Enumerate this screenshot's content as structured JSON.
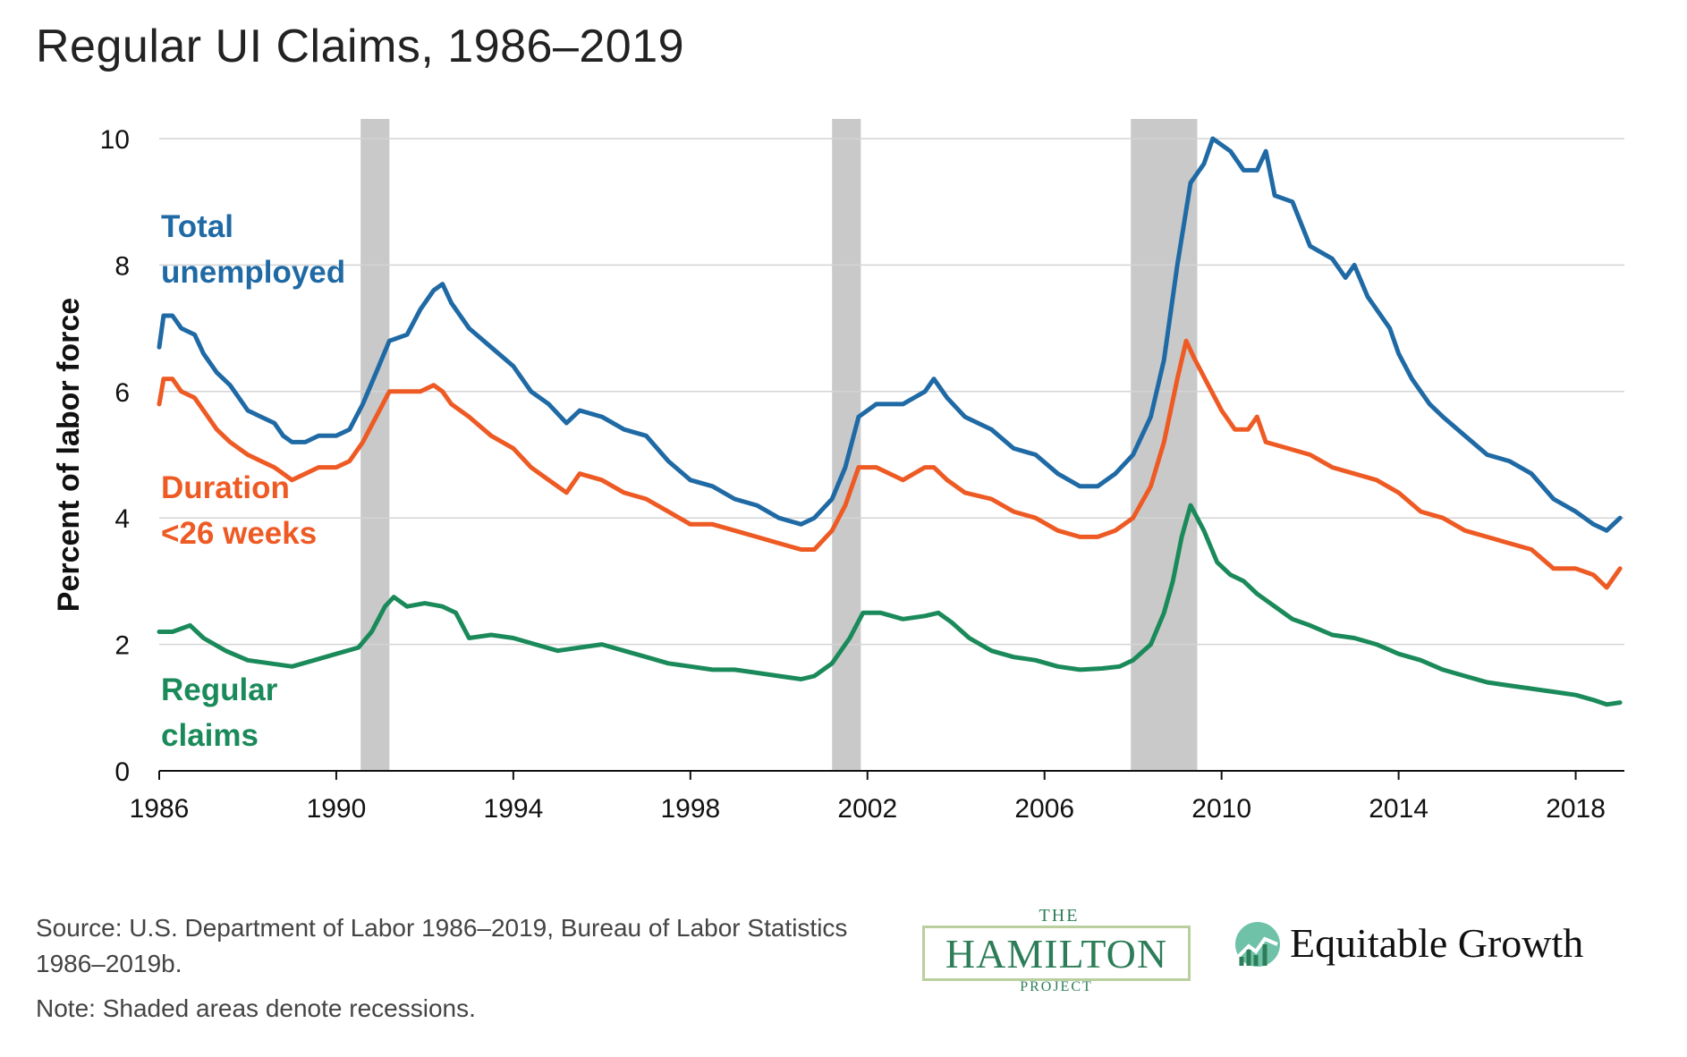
{
  "title": "Regular UI Claims, 1986–2019",
  "source_text": "Source: U.S. Department of Labor 1986–2019, Bureau of Labor Statistics 1986–2019b.",
  "note_text": "Note: Shaded areas denote recessions.",
  "logos": {
    "hamilton_the": "THE",
    "hamilton_name": "HAMILTON",
    "hamilton_project": "PROJECT",
    "equitable_growth": "Equitable Growth"
  },
  "chart_data": {
    "type": "line",
    "title": "Regular UI Claims, 1986–2019",
    "xlabel": "",
    "ylabel": "Percent of labor force",
    "xlim": [
      1986,
      2019.1
    ],
    "ylim": [
      0,
      10
    ],
    "x_ticks": [
      1986,
      1990,
      1994,
      1998,
      2002,
      2006,
      2010,
      2014,
      2018
    ],
    "y_ticks": [
      0,
      2,
      4,
      6,
      8,
      10
    ],
    "grid": "horizontal",
    "recessions": [
      [
        1990.55,
        1991.2
      ],
      [
        2001.2,
        2001.85
      ],
      [
        2007.95,
        2009.45
      ]
    ],
    "series": [
      {
        "name": "Total unemployed",
        "label_lines": [
          "Total",
          "unemployed"
        ],
        "color": "#1f6aa5",
        "points": [
          [
            1986,
            6.7
          ],
          [
            1986.1,
            7.2
          ],
          [
            1986.3,
            7.2
          ],
          [
            1986.5,
            7.0
          ],
          [
            1986.8,
            6.9
          ],
          [
            1987,
            6.6
          ],
          [
            1987.3,
            6.3
          ],
          [
            1987.6,
            6.1
          ],
          [
            1988,
            5.7
          ],
          [
            1988.3,
            5.6
          ],
          [
            1988.6,
            5.5
          ],
          [
            1988.8,
            5.3
          ],
          [
            1989,
            5.2
          ],
          [
            1989.3,
            5.2
          ],
          [
            1989.6,
            5.3
          ],
          [
            1990,
            5.3
          ],
          [
            1990.3,
            5.4
          ],
          [
            1990.6,
            5.8
          ],
          [
            1990.9,
            6.3
          ],
          [
            1991.2,
            6.8
          ],
          [
            1991.6,
            6.9
          ],
          [
            1991.9,
            7.3
          ],
          [
            1992.2,
            7.6
          ],
          [
            1992.4,
            7.7
          ],
          [
            1992.6,
            7.4
          ],
          [
            1993,
            7.0
          ],
          [
            1993.5,
            6.7
          ],
          [
            1994,
            6.4
          ],
          [
            1994.4,
            6.0
          ],
          [
            1994.8,
            5.8
          ],
          [
            1995.2,
            5.5
          ],
          [
            1995.5,
            5.7
          ],
          [
            1996,
            5.6
          ],
          [
            1996.5,
            5.4
          ],
          [
            1997,
            5.3
          ],
          [
            1997.5,
            4.9
          ],
          [
            1998,
            4.6
          ],
          [
            1998.5,
            4.5
          ],
          [
            1999,
            4.3
          ],
          [
            1999.5,
            4.2
          ],
          [
            2000,
            4.0
          ],
          [
            2000.5,
            3.9
          ],
          [
            2000.8,
            4.0
          ],
          [
            2001.2,
            4.3
          ],
          [
            2001.5,
            4.8
          ],
          [
            2001.8,
            5.6
          ],
          [
            2002.2,
            5.8
          ],
          [
            2002.8,
            5.8
          ],
          [
            2003.3,
            6.0
          ],
          [
            2003.5,
            6.2
          ],
          [
            2003.8,
            5.9
          ],
          [
            2004.2,
            5.6
          ],
          [
            2004.8,
            5.4
          ],
          [
            2005.3,
            5.1
          ],
          [
            2005.8,
            5.0
          ],
          [
            2006.3,
            4.7
          ],
          [
            2006.8,
            4.5
          ],
          [
            2007.2,
            4.5
          ],
          [
            2007.6,
            4.7
          ],
          [
            2008,
            5.0
          ],
          [
            2008.4,
            5.6
          ],
          [
            2008.7,
            6.5
          ],
          [
            2009,
            8.0
          ],
          [
            2009.3,
            9.3
          ],
          [
            2009.6,
            9.6
          ],
          [
            2009.8,
            10.0
          ],
          [
            2010.2,
            9.8
          ],
          [
            2010.5,
            9.5
          ],
          [
            2010.8,
            9.5
          ],
          [
            2011,
            9.8
          ],
          [
            2011.2,
            9.1
          ],
          [
            2011.6,
            9.0
          ],
          [
            2012,
            8.3
          ],
          [
            2012.5,
            8.1
          ],
          [
            2012.8,
            7.8
          ],
          [
            2013,
            8.0
          ],
          [
            2013.3,
            7.5
          ],
          [
            2013.8,
            7.0
          ],
          [
            2014,
            6.6
          ],
          [
            2014.3,
            6.2
          ],
          [
            2014.7,
            5.8
          ],
          [
            2015,
            5.6
          ],
          [
            2015.5,
            5.3
          ],
          [
            2016,
            5.0
          ],
          [
            2016.5,
            4.9
          ],
          [
            2017,
            4.7
          ],
          [
            2017.5,
            4.3
          ],
          [
            2018,
            4.1
          ],
          [
            2018.4,
            3.9
          ],
          [
            2018.7,
            3.8
          ],
          [
            2019,
            4.0
          ]
        ]
      },
      {
        "name": "Duration <26 weeks",
        "label_lines": [
          "Duration",
          "<26 weeks"
        ],
        "color": "#ee5a24",
        "points": [
          [
            1986,
            5.8
          ],
          [
            1986.1,
            6.2
          ],
          [
            1986.3,
            6.2
          ],
          [
            1986.5,
            6.0
          ],
          [
            1986.8,
            5.9
          ],
          [
            1987,
            5.7
          ],
          [
            1987.3,
            5.4
          ],
          [
            1987.6,
            5.2
          ],
          [
            1988,
            5.0
          ],
          [
            1988.3,
            4.9
          ],
          [
            1988.6,
            4.8
          ],
          [
            1988.8,
            4.7
          ],
          [
            1989,
            4.6
          ],
          [
            1989.3,
            4.7
          ],
          [
            1989.6,
            4.8
          ],
          [
            1990,
            4.8
          ],
          [
            1990.3,
            4.9
          ],
          [
            1990.6,
            5.2
          ],
          [
            1990.9,
            5.6
          ],
          [
            1991.2,
            6.0
          ],
          [
            1991.6,
            6.0
          ],
          [
            1991.9,
            6.0
          ],
          [
            1992.2,
            6.1
          ],
          [
            1992.4,
            6.0
          ],
          [
            1992.6,
            5.8
          ],
          [
            1993,
            5.6
          ],
          [
            1993.5,
            5.3
          ],
          [
            1994,
            5.1
          ],
          [
            1994.4,
            4.8
          ],
          [
            1994.8,
            4.6
          ],
          [
            1995.2,
            4.4
          ],
          [
            1995.5,
            4.7
          ],
          [
            1996,
            4.6
          ],
          [
            1996.5,
            4.4
          ],
          [
            1997,
            4.3
          ],
          [
            1997.5,
            4.1
          ],
          [
            1998,
            3.9
          ],
          [
            1998.5,
            3.9
          ],
          [
            1999,
            3.8
          ],
          [
            1999.5,
            3.7
          ],
          [
            2000,
            3.6
          ],
          [
            2000.5,
            3.5
          ],
          [
            2000.8,
            3.5
          ],
          [
            2001.2,
            3.8
          ],
          [
            2001.5,
            4.2
          ],
          [
            2001.8,
            4.8
          ],
          [
            2002.2,
            4.8
          ],
          [
            2002.8,
            4.6
          ],
          [
            2003.3,
            4.8
          ],
          [
            2003.5,
            4.8
          ],
          [
            2003.8,
            4.6
          ],
          [
            2004.2,
            4.4
          ],
          [
            2004.8,
            4.3
          ],
          [
            2005.3,
            4.1
          ],
          [
            2005.8,
            4.0
          ],
          [
            2006.3,
            3.8
          ],
          [
            2006.8,
            3.7
          ],
          [
            2007.2,
            3.7
          ],
          [
            2007.6,
            3.8
          ],
          [
            2008,
            4.0
          ],
          [
            2008.4,
            4.5
          ],
          [
            2008.7,
            5.2
          ],
          [
            2009,
            6.2
          ],
          [
            2009.2,
            6.8
          ],
          [
            2009.4,
            6.5
          ],
          [
            2009.7,
            6.1
          ],
          [
            2010,
            5.7
          ],
          [
            2010.3,
            5.4
          ],
          [
            2010.6,
            5.4
          ],
          [
            2010.8,
            5.6
          ],
          [
            2011,
            5.2
          ],
          [
            2011.5,
            5.1
          ],
          [
            2012,
            5.0
          ],
          [
            2012.5,
            4.8
          ],
          [
            2013,
            4.7
          ],
          [
            2013.5,
            4.6
          ],
          [
            2014,
            4.4
          ],
          [
            2014.5,
            4.1
          ],
          [
            2015,
            4.0
          ],
          [
            2015.5,
            3.8
          ],
          [
            2016,
            3.7
          ],
          [
            2016.5,
            3.6
          ],
          [
            2017,
            3.5
          ],
          [
            2017.5,
            3.2
          ],
          [
            2018,
            3.2
          ],
          [
            2018.4,
            3.1
          ],
          [
            2018.7,
            2.9
          ],
          [
            2019,
            3.2
          ]
        ]
      },
      {
        "name": "Regular claims",
        "label_lines": [
          "Regular",
          "claims"
        ],
        "color": "#1b8a5a",
        "points": [
          [
            1986,
            2.2
          ],
          [
            1986.3,
            2.2
          ],
          [
            1986.7,
            2.3
          ],
          [
            1987,
            2.1
          ],
          [
            1987.5,
            1.9
          ],
          [
            1988,
            1.75
          ],
          [
            1988.5,
            1.7
          ],
          [
            1989,
            1.65
          ],
          [
            1989.5,
            1.75
          ],
          [
            1990,
            1.85
          ],
          [
            1990.5,
            1.95
          ],
          [
            1990.8,
            2.2
          ],
          [
            1991.1,
            2.6
          ],
          [
            1991.3,
            2.75
          ],
          [
            1991.6,
            2.6
          ],
          [
            1992,
            2.65
          ],
          [
            1992.4,
            2.6
          ],
          [
            1992.7,
            2.5
          ],
          [
            1993,
            2.1
          ],
          [
            1993.5,
            2.15
          ],
          [
            1994,
            2.1
          ],
          [
            1994.5,
            2.0
          ],
          [
            1995,
            1.9
          ],
          [
            1995.5,
            1.95
          ],
          [
            1996,
            2.0
          ],
          [
            1996.5,
            1.9
          ],
          [
            1997,
            1.8
          ],
          [
            1997.5,
            1.7
          ],
          [
            1998,
            1.65
          ],
          [
            1998.5,
            1.6
          ],
          [
            1999,
            1.6
          ],
          [
            1999.5,
            1.55
          ],
          [
            2000,
            1.5
          ],
          [
            2000.5,
            1.45
          ],
          [
            2000.8,
            1.5
          ],
          [
            2001.2,
            1.7
          ],
          [
            2001.6,
            2.1
          ],
          [
            2001.9,
            2.5
          ],
          [
            2002.3,
            2.5
          ],
          [
            2002.8,
            2.4
          ],
          [
            2003.3,
            2.45
          ],
          [
            2003.6,
            2.5
          ],
          [
            2003.9,
            2.35
          ],
          [
            2004.3,
            2.1
          ],
          [
            2004.8,
            1.9
          ],
          [
            2005.3,
            1.8
          ],
          [
            2005.8,
            1.75
          ],
          [
            2006.3,
            1.65
          ],
          [
            2006.8,
            1.6
          ],
          [
            2007.3,
            1.62
          ],
          [
            2007.7,
            1.65
          ],
          [
            2008,
            1.75
          ],
          [
            2008.4,
            2.0
          ],
          [
            2008.7,
            2.5
          ],
          [
            2008.9,
            3.0
          ],
          [
            2009.1,
            3.7
          ],
          [
            2009.3,
            4.2
          ],
          [
            2009.6,
            3.8
          ],
          [
            2009.9,
            3.3
          ],
          [
            2010.2,
            3.1
          ],
          [
            2010.5,
            3.0
          ],
          [
            2010.8,
            2.8
          ],
          [
            2011.2,
            2.6
          ],
          [
            2011.6,
            2.4
          ],
          [
            2012,
            2.3
          ],
          [
            2012.5,
            2.15
          ],
          [
            2013,
            2.1
          ],
          [
            2013.5,
            2.0
          ],
          [
            2014,
            1.85
          ],
          [
            2014.5,
            1.75
          ],
          [
            2015,
            1.6
          ],
          [
            2015.5,
            1.5
          ],
          [
            2016,
            1.4
          ],
          [
            2016.5,
            1.35
          ],
          [
            2017,
            1.3
          ],
          [
            2017.5,
            1.25
          ],
          [
            2018,
            1.2
          ],
          [
            2018.4,
            1.12
          ],
          [
            2018.7,
            1.05
          ],
          [
            2019,
            1.08
          ]
        ]
      }
    ]
  }
}
